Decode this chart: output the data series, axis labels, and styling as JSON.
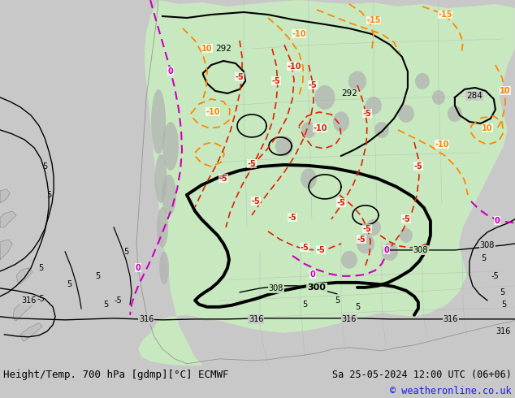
{
  "title_left": "Height/Temp. 700 hPa [gdmp][°C] ECMWF",
  "title_right": "Sa 25-05-2024 12:00 UTC (06+06)",
  "credit": "© weatheronline.co.uk",
  "bg_color": "#c8c8c8",
  "land_green": "#c8e8c0",
  "land_gray": "#b8b8b8",
  "fig_width": 6.34,
  "fig_height": 4.9,
  "dpi": 100,
  "bottom_bg": "#e8e8e8",
  "title_fontsize": 9.0,
  "credit_fontsize": 8.5,
  "credit_color": "#1a1aee"
}
